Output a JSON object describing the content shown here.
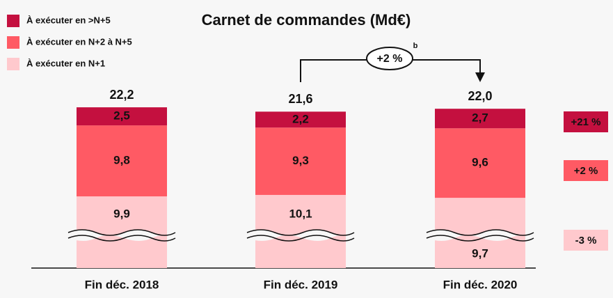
{
  "chart_data": {
    "type": "stacked-bar",
    "title": "Carnet de commandes (Md€)",
    "categories": [
      "Fin déc. 2018",
      "Fin déc. 2019",
      "Fin déc. 2020"
    ],
    "series": [
      {
        "name": "À exécuter en N+1",
        "color": "#ffc9cd",
        "values": [
          9.9,
          10.1,
          9.7
        ],
        "value_labels": [
          "9,9",
          "10,1",
          "9,7"
        ]
      },
      {
        "name": "À exécuter en N+2 à N+5",
        "color": "#ff5a64",
        "values": [
          9.8,
          9.3,
          9.6
        ],
        "value_labels": [
          "9,8",
          "9,3",
          "9,6"
        ]
      },
      {
        "name": "À exécuter en >N+5",
        "color": "#c4103f",
        "values": [
          2.5,
          2.2,
          2.7
        ],
        "value_labels": [
          "2,5",
          "2,2",
          "2,7"
        ]
      }
    ],
    "totals": [
      22.2,
      21.6,
      22.0
    ],
    "total_labels": [
      "22,2",
      "21,6",
      "22,0"
    ],
    "growth_labels": [
      "-3 %",
      "+2 %",
      "+21 %"
    ],
    "change_label": "+2 %",
    "change_note": "b"
  }
}
